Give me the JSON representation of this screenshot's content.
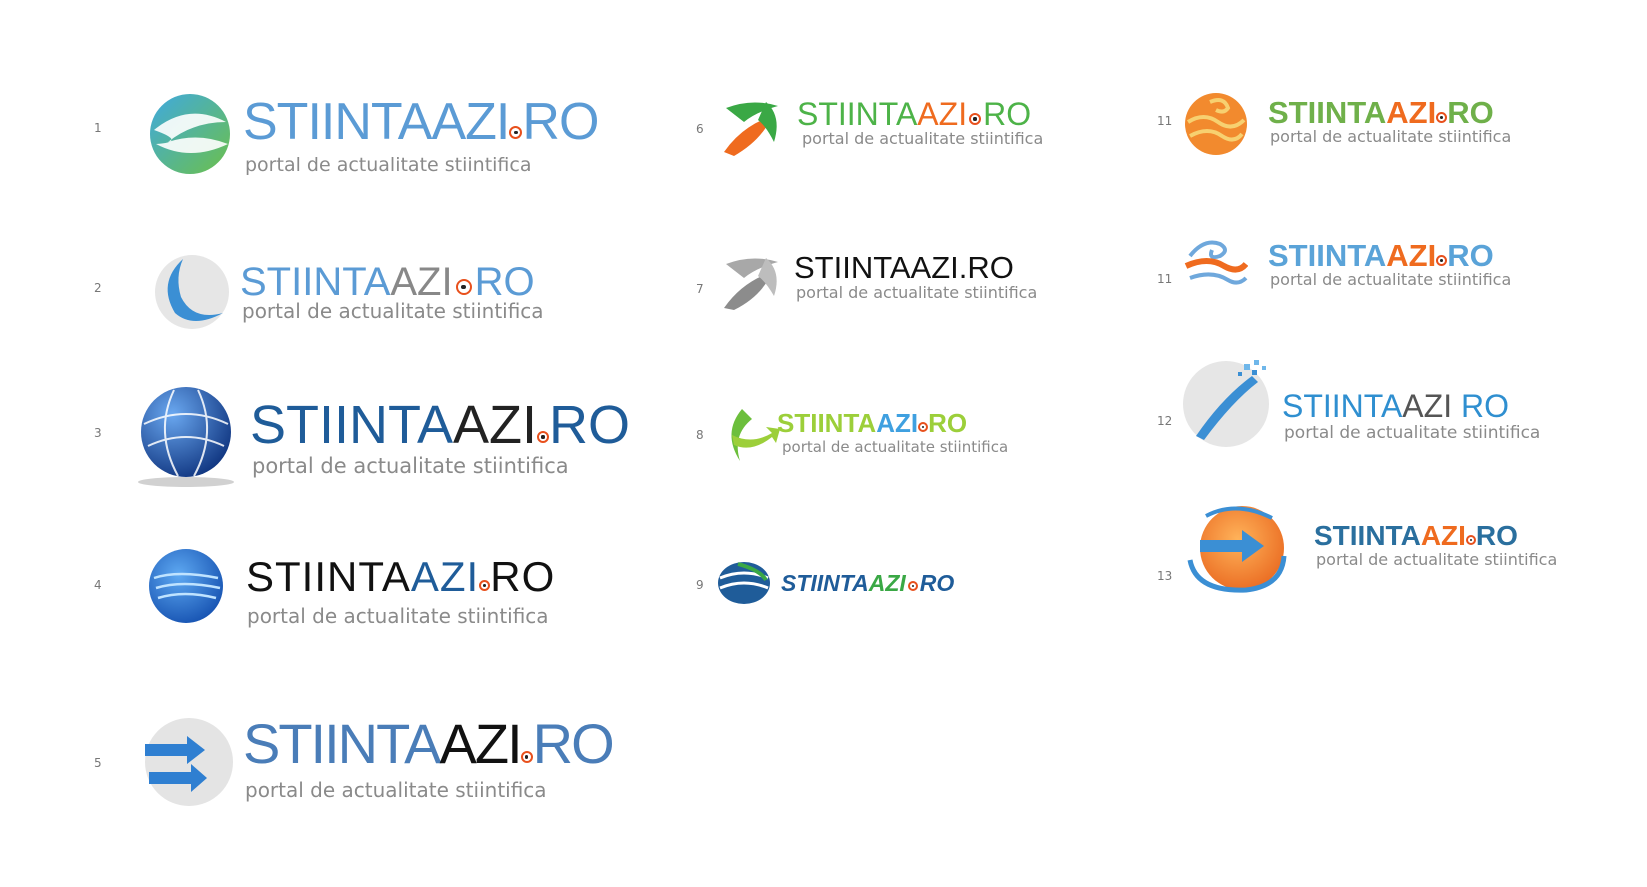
{
  "logos": [
    {
      "num": "1",
      "w1": "STIINTA",
      "w2": "AZI",
      "sep": ".",
      "w3": "RO",
      "sep_type": "dot",
      "tagline": "portal de actualitate stiintifica"
    },
    {
      "num": "2",
      "w1": "STIINTA",
      "w2": "AZI",
      "sep": "",
      "w3": "RO",
      "sep_type": "dot",
      "tagline": "portal de actualitate stiintifica"
    },
    {
      "num": "3",
      "w1": "STIINTA",
      "w2": "AZI",
      "sep": ".",
      "w3": "RO",
      "sep_type": "dot",
      "tagline": "portal de actualitate stiintifica"
    },
    {
      "num": "4",
      "w1": "STIINTA",
      "w2": "AZI",
      "sep": ".",
      "w3": "RO",
      "sep_type": "dot",
      "tagline": "portal de actualitate stiintifica"
    },
    {
      "num": "5",
      "w1": "STIINTA",
      "w2": "AZI",
      "sep": ".",
      "w3": "RO",
      "sep_type": "dot",
      "tagline": "portal de actualitate stiintifica"
    },
    {
      "num": "6",
      "w1": "STIINTA",
      "w2": "AZI",
      "sep": "",
      "w3": "RO",
      "sep_type": "dot",
      "tagline": "portal de actualitate stiintifica"
    },
    {
      "num": "7",
      "w1": "STIINTA",
      "w2": "AZI",
      "sep": ".",
      "w3": "RO",
      "sep_type": "text",
      "tagline": "portal de actualitate stiintifica"
    },
    {
      "num": "8",
      "w1": "STIINTA",
      "w2": "AZI",
      "sep": ".",
      "w3": "RO",
      "sep_type": "dot",
      "tagline": "portal de actualitate stiintifica"
    },
    {
      "num": "9",
      "w1": "STIINTA",
      "w2": "AZI",
      "sep": "",
      "w3": "RO",
      "sep_type": "dot",
      "tagline": ""
    },
    {
      "num": "11",
      "w1": "STIINTA",
      "w2": "AZI",
      "sep": ".",
      "w3": "RO",
      "sep_type": "dot",
      "tagline": "portal de actualitate stiintifica"
    },
    {
      "num": "11",
      "w1": "STIINTA",
      "w2": "AZI",
      "sep": ".",
      "w3": "RO",
      "sep_type": "dot",
      "tagline": "portal de actualitate stiintifica"
    },
    {
      "num": "12",
      "w1": "STIINTA",
      "w2": "AZI",
      "sep": " ",
      "w3": "RO",
      "sep_type": "text",
      "tagline": "portal de actualitate stiintifica"
    },
    {
      "num": "13",
      "w1": "STIINTA",
      "w2": "AZI",
      "sep": ".",
      "w3": "RO",
      "sep_type": "dot",
      "tagline": "portal de actualitate stiintifica"
    }
  ],
  "colors": {
    "accent_orange": "#e8501c",
    "blue_light": "#5b9bd5",
    "blue_dark": "#1f5c99",
    "green": "#6cc04a",
    "gray_text": "#8a8a8a"
  }
}
